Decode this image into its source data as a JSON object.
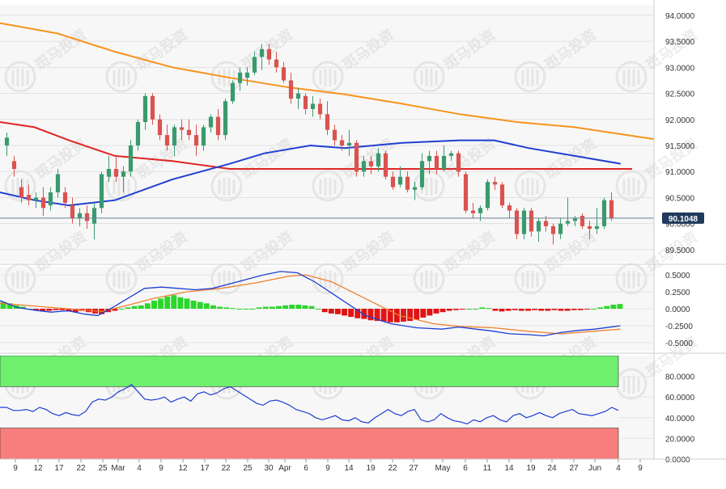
{
  "chart_data": [
    {
      "panel": "price",
      "type": "candlestick",
      "y_tick_labels": [
        "94.0000",
        "93.5000",
        "93.0000",
        "92.5000",
        "92.0000",
        "91.5000",
        "91.0000",
        "90.5000",
        "90.0000",
        "89.5000"
      ],
      "ylim": [
        89.25,
        94.2
      ],
      "current_price_label": "90.1048",
      "current_price": 90.1048,
      "colors": {
        "up": "#3a9a6e",
        "down": "#d9534f",
        "ma_orange": "#f7931e",
        "ma_blue": "#1f3fd1",
        "ma_red": "#e02424",
        "price_line": "#6b7f96"
      },
      "candles": [
        {
          "o": 91.5,
          "h": 91.75,
          "l": 91.3,
          "c": 91.65
        },
        {
          "o": 91.2,
          "h": 91.3,
          "l": 90.9,
          "c": 91.05
        },
        {
          "o": 90.7,
          "h": 90.85,
          "l": 90.4,
          "c": 90.5
        },
        {
          "o": 90.55,
          "h": 90.75,
          "l": 90.35,
          "c": 90.45
        },
        {
          "o": 90.45,
          "h": 90.6,
          "l": 90.3,
          "c": 90.5
        },
        {
          "o": 90.5,
          "h": 90.7,
          "l": 90.15,
          "c": 90.3
        },
        {
          "o": 90.35,
          "h": 90.7,
          "l": 90.25,
          "c": 90.6
        },
        {
          "o": 90.6,
          "h": 91.05,
          "l": 90.5,
          "c": 90.95
        },
        {
          "o": 90.6,
          "h": 90.7,
          "l": 90.3,
          "c": 90.4
        },
        {
          "o": 90.35,
          "h": 90.5,
          "l": 90.0,
          "c": 90.1
        },
        {
          "o": 90.1,
          "h": 90.3,
          "l": 89.95,
          "c": 90.2
        },
        {
          "o": 90.2,
          "h": 90.35,
          "l": 89.9,
          "c": 90.05
        },
        {
          "o": 90.0,
          "h": 90.4,
          "l": 89.7,
          "c": 90.3
        },
        {
          "o": 90.3,
          "h": 91.0,
          "l": 90.2,
          "c": 90.95
        },
        {
          "o": 90.9,
          "h": 91.3,
          "l": 90.8,
          "c": 91.05
        },
        {
          "o": 91.05,
          "h": 91.3,
          "l": 90.8,
          "c": 90.9
        },
        {
          "o": 90.9,
          "h": 91.1,
          "l": 90.6,
          "c": 91.0
        },
        {
          "o": 91.0,
          "h": 91.6,
          "l": 90.9,
          "c": 91.5
        },
        {
          "o": 91.5,
          "h": 92.0,
          "l": 91.4,
          "c": 91.95
        },
        {
          "o": 91.95,
          "h": 92.5,
          "l": 91.8,
          "c": 92.45
        },
        {
          "o": 92.45,
          "h": 92.5,
          "l": 91.9,
          "c": 92.0
        },
        {
          "o": 92.0,
          "h": 92.1,
          "l": 91.6,
          "c": 91.7
        },
        {
          "o": 91.7,
          "h": 91.9,
          "l": 91.4,
          "c": 91.5
        },
        {
          "o": 91.5,
          "h": 91.9,
          "l": 91.3,
          "c": 91.85
        },
        {
          "o": 91.85,
          "h": 92.0,
          "l": 91.6,
          "c": 91.8
        },
        {
          "o": 91.8,
          "h": 92.0,
          "l": 91.6,
          "c": 91.7
        },
        {
          "o": 91.7,
          "h": 91.9,
          "l": 91.3,
          "c": 91.5
        },
        {
          "o": 91.5,
          "h": 91.9,
          "l": 91.4,
          "c": 91.85
        },
        {
          "o": 91.85,
          "h": 92.1,
          "l": 91.75,
          "c": 92.05
        },
        {
          "o": 92.05,
          "h": 92.2,
          "l": 91.6,
          "c": 91.7
        },
        {
          "o": 91.7,
          "h": 92.4,
          "l": 91.6,
          "c": 92.35
        },
        {
          "o": 92.35,
          "h": 92.75,
          "l": 92.3,
          "c": 92.7
        },
        {
          "o": 92.7,
          "h": 93.0,
          "l": 92.55,
          "c": 92.9
        },
        {
          "o": 92.8,
          "h": 93.0,
          "l": 92.65,
          "c": 92.9
        },
        {
          "o": 92.9,
          "h": 93.3,
          "l": 92.85,
          "c": 93.2
        },
        {
          "o": 93.2,
          "h": 93.45,
          "l": 92.95,
          "c": 93.35
        },
        {
          "o": 93.35,
          "h": 93.45,
          "l": 93.05,
          "c": 93.15
        },
        {
          "o": 93.15,
          "h": 93.3,
          "l": 92.9,
          "c": 93.0
        },
        {
          "o": 93.0,
          "h": 93.1,
          "l": 92.7,
          "c": 92.75
        },
        {
          "o": 92.75,
          "h": 92.9,
          "l": 92.3,
          "c": 92.4
        },
        {
          "o": 92.4,
          "h": 92.6,
          "l": 92.2,
          "c": 92.5
        },
        {
          "o": 92.45,
          "h": 92.5,
          "l": 92.1,
          "c": 92.2
        },
        {
          "o": 92.2,
          "h": 92.45,
          "l": 92.05,
          "c": 92.3
        },
        {
          "o": 92.3,
          "h": 92.4,
          "l": 92.0,
          "c": 92.1
        },
        {
          "o": 92.1,
          "h": 92.35,
          "l": 91.7,
          "c": 91.8
        },
        {
          "o": 91.8,
          "h": 91.9,
          "l": 91.5,
          "c": 91.6
        },
        {
          "o": 91.6,
          "h": 91.7,
          "l": 91.4,
          "c": 91.5
        },
        {
          "o": 91.5,
          "h": 91.8,
          "l": 91.3,
          "c": 91.55
        },
        {
          "o": 91.55,
          "h": 91.6,
          "l": 90.9,
          "c": 91.0
        },
        {
          "o": 91.0,
          "h": 91.3,
          "l": 90.9,
          "c": 91.2
        },
        {
          "o": 91.2,
          "h": 91.3,
          "l": 90.95,
          "c": 91.1
        },
        {
          "o": 91.1,
          "h": 91.45,
          "l": 91.0,
          "c": 91.35
        },
        {
          "o": 91.35,
          "h": 91.4,
          "l": 90.85,
          "c": 90.9
        },
        {
          "o": 90.9,
          "h": 91.0,
          "l": 90.65,
          "c": 90.7
        },
        {
          "o": 90.75,
          "h": 91.1,
          "l": 90.7,
          "c": 90.9
        },
        {
          "o": 90.9,
          "h": 91.0,
          "l": 90.6,
          "c": 90.65
        },
        {
          "o": 90.65,
          "h": 90.8,
          "l": 90.45,
          "c": 90.7
        },
        {
          "o": 90.7,
          "h": 91.35,
          "l": 90.65,
          "c": 91.2
        },
        {
          "o": 91.2,
          "h": 91.4,
          "l": 90.95,
          "c": 91.3
        },
        {
          "o": 91.3,
          "h": 91.4,
          "l": 90.95,
          "c": 91.05
        },
        {
          "o": 91.05,
          "h": 91.5,
          "l": 91.0,
          "c": 91.3
        },
        {
          "o": 91.3,
          "h": 91.4,
          "l": 91.2,
          "c": 91.35
        },
        {
          "o": 91.35,
          "h": 91.4,
          "l": 90.9,
          "c": 91.0
        },
        {
          "o": 90.95,
          "h": 91.0,
          "l": 90.2,
          "c": 90.25
        },
        {
          "o": 90.25,
          "h": 90.4,
          "l": 90.1,
          "c": 90.2
        },
        {
          "o": 90.2,
          "h": 90.35,
          "l": 90.05,
          "c": 90.3
        },
        {
          "o": 90.3,
          "h": 90.85,
          "l": 90.25,
          "c": 90.8
        },
        {
          "o": 90.8,
          "h": 90.9,
          "l": 90.65,
          "c": 90.75
        },
        {
          "o": 90.75,
          "h": 90.8,
          "l": 90.3,
          "c": 90.35
        },
        {
          "o": 90.35,
          "h": 90.4,
          "l": 90.1,
          "c": 90.25
        },
        {
          "o": 90.25,
          "h": 90.3,
          "l": 89.7,
          "c": 89.8
        },
        {
          "o": 89.8,
          "h": 90.3,
          "l": 89.7,
          "c": 90.25
        },
        {
          "o": 90.25,
          "h": 90.3,
          "l": 89.75,
          "c": 89.85
        },
        {
          "o": 89.85,
          "h": 90.1,
          "l": 89.65,
          "c": 90.05
        },
        {
          "o": 90.05,
          "h": 90.15,
          "l": 89.85,
          "c": 89.95
        },
        {
          "o": 89.95,
          "h": 90.0,
          "l": 89.6,
          "c": 89.8
        },
        {
          "o": 89.8,
          "h": 90.1,
          "l": 89.7,
          "c": 90.0
        },
        {
          "o": 90.0,
          "h": 90.5,
          "l": 89.95,
          "c": 90.05
        },
        {
          "o": 90.05,
          "h": 90.15,
          "l": 89.95,
          "c": 90.1
        },
        {
          "o": 90.15,
          "h": 90.2,
          "l": 89.9,
          "c": 89.95
        },
        {
          "o": 89.95,
          "h": 90.05,
          "l": 89.7,
          "c": 89.9
        },
        {
          "o": 89.9,
          "h": 90.3,
          "l": 89.8,
          "c": 89.95
        },
        {
          "o": 89.95,
          "h": 90.5,
          "l": 89.9,
          "c": 90.45
        },
        {
          "o": 90.45,
          "h": 90.6,
          "l": 90.05,
          "c": 90.1
        }
      ],
      "ma_orange": [
        [
          0,
          93.85
        ],
        [
          10,
          93.65
        ],
        [
          20,
          93.3
        ],
        [
          30,
          93.0
        ],
        [
          40,
          92.8
        ],
        [
          50,
          92.62
        ],
        [
          60,
          92.48
        ],
        [
          70,
          92.3
        ],
        [
          80,
          92.1
        ],
        [
          90,
          91.95
        ],
        [
          100,
          91.85
        ],
        [
          114,
          91.62
        ]
      ],
      "ma_blue": [
        [
          0,
          90.6
        ],
        [
          6,
          90.45
        ],
        [
          12,
          90.35
        ],
        [
          20,
          90.45
        ],
        [
          30,
          90.85
        ],
        [
          40,
          91.15
        ],
        [
          46,
          91.35
        ],
        [
          54,
          91.5
        ],
        [
          60,
          91.45
        ],
        [
          70,
          91.55
        ],
        [
          80,
          91.6
        ],
        [
          86,
          91.6
        ],
        [
          92,
          91.45
        ],
        [
          100,
          91.3
        ],
        [
          108,
          91.15
        ]
      ],
      "ma_red": [
        [
          0,
          91.95
        ],
        [
          6,
          91.85
        ],
        [
          12,
          91.6
        ],
        [
          20,
          91.3
        ],
        [
          30,
          91.2
        ],
        [
          40,
          91.05
        ],
        [
          54,
          91.05
        ],
        [
          70,
          91.05
        ],
        [
          90,
          91.05
        ],
        [
          110,
          91.05
        ]
      ]
    },
    {
      "panel": "macd",
      "type": "line+bar",
      "y_tick_labels": [
        "0.5000",
        "0.2500",
        "0.0000",
        "-0.2500",
        "-0.5000"
      ],
      "ylim": [
        -0.62,
        0.62
      ],
      "colors": {
        "hist_up": "#2cd62c",
        "hist_down": "#e01414",
        "macd": "#1f3fd1",
        "signal": "#f08030"
      },
      "histogram": [
        0.1,
        0.08,
        0.05,
        0.03,
        0.0,
        -0.02,
        -0.03,
        -0.03,
        -0.02,
        -0.02,
        -0.04,
        -0.05,
        -0.03,
        -0.05,
        -0.07,
        -0.08,
        -0.05,
        -0.03,
        0.0,
        0.02,
        0.04,
        0.05,
        0.08,
        0.12,
        0.15,
        0.18,
        0.2,
        0.17,
        0.15,
        0.12,
        0.1,
        0.08,
        0.05,
        0.03,
        0.02,
        0.01,
        0.0,
        0.0,
        0.0,
        0.02,
        0.03,
        0.03,
        0.04,
        0.05,
        0.06,
        0.06,
        0.05,
        0.04,
        0.0,
        -0.05,
        -0.07,
        -0.08,
        -0.1,
        -0.12,
        -0.14,
        -0.15,
        -0.17,
        -0.18,
        -0.19,
        -0.2,
        -0.2,
        -0.19,
        -0.18,
        -0.16,
        -0.13,
        -0.1,
        -0.07,
        -0.05,
        -0.03,
        -0.02,
        -0.01,
        0.0,
        0.0,
        0.02,
        0.01,
        -0.03,
        -0.04,
        -0.03,
        -0.02,
        -0.03,
        -0.03,
        -0.02,
        -0.03,
        -0.03,
        -0.02,
        -0.03,
        -0.03,
        -0.02,
        -0.02,
        -0.01,
        0.0,
        0.02,
        0.04,
        0.06,
        0.07
      ],
      "macd": [
        [
          0,
          0.12
        ],
        [
          4,
          0.02
        ],
        [
          8,
          -0.02
        ],
        [
          12,
          -0.05
        ],
        [
          16,
          -0.03
        ],
        [
          20,
          -0.08
        ],
        [
          23,
          -0.1
        ],
        [
          26,
          0.0
        ],
        [
          30,
          0.15
        ],
        [
          34,
          0.3
        ],
        [
          38,
          0.32
        ],
        [
          42,
          0.3
        ],
        [
          46,
          0.28
        ],
        [
          50,
          0.3
        ],
        [
          56,
          0.4
        ],
        [
          62,
          0.5
        ],
        [
          66,
          0.55
        ],
        [
          70,
          0.53
        ],
        [
          74,
          0.4
        ],
        [
          80,
          0.15
        ],
        [
          86,
          -0.1
        ],
        [
          92,
          -0.22
        ],
        [
          98,
          -0.28
        ],
        [
          104,
          -0.3
        ],
        [
          108,
          -0.27
        ],
        [
          112,
          -0.3
        ],
        [
          116,
          -0.33
        ],
        [
          120,
          -0.37
        ],
        [
          124,
          -0.38
        ],
        [
          128,
          -0.4
        ],
        [
          132,
          -0.35
        ],
        [
          136,
          -0.32
        ],
        [
          140,
          -0.3
        ],
        [
          146,
          -0.25
        ]
      ],
      "signal": [
        [
          0,
          0.08
        ],
        [
          8,
          0.04
        ],
        [
          16,
          0.0
        ],
        [
          24,
          -0.04
        ],
        [
          30,
          0.05
        ],
        [
          36,
          0.15
        ],
        [
          44,
          0.25
        ],
        [
          52,
          0.3
        ],
        [
          60,
          0.38
        ],
        [
          68,
          0.48
        ],
        [
          72,
          0.5
        ],
        [
          78,
          0.4
        ],
        [
          86,
          0.15
        ],
        [
          94,
          -0.1
        ],
        [
          102,
          -0.22
        ],
        [
          108,
          -0.26
        ],
        [
          116,
          -0.28
        ],
        [
          124,
          -0.33
        ],
        [
          132,
          -0.37
        ],
        [
          140,
          -0.33
        ],
        [
          146,
          -0.3
        ]
      ]
    },
    {
      "panel": "rsi",
      "type": "line",
      "y_tick_labels": [
        "80.0000",
        "60.0000",
        "40.0000",
        "20.0000",
        "0.0000"
      ],
      "ylim": [
        0,
        100
      ],
      "overbought_band": [
        70,
        100
      ],
      "oversold_band": [
        0,
        30
      ],
      "colors": {
        "line": "#1f3fd1",
        "overbought": "#6ef06e",
        "oversold": "#f97d7d"
      },
      "values": [
        50,
        50,
        47,
        47,
        48,
        46,
        50,
        48,
        44,
        42,
        45,
        43,
        42,
        46,
        55,
        58,
        57,
        60,
        65,
        68,
        72,
        65,
        58,
        57,
        58,
        60,
        55,
        58,
        60,
        56,
        63,
        65,
        62,
        64,
        68,
        70,
        66,
        62,
        58,
        54,
        52,
        56,
        57,
        55,
        52,
        48,
        46,
        44,
        40,
        38,
        40,
        42,
        38,
        37,
        40,
        36,
        35,
        40,
        44,
        48,
        44,
        42,
        46,
        48,
        38,
        36,
        38,
        44,
        40,
        37,
        36,
        34,
        38,
        36,
        40,
        42,
        38,
        36,
        42,
        44,
        40,
        42,
        45,
        42,
        40,
        44,
        46,
        48,
        44,
        43,
        42,
        44,
        46,
        50,
        47
      ]
    },
    {
      "panel": "x-axis",
      "tick_labels": [
        "9",
        "12",
        "17",
        "22",
        "25",
        "Mar",
        "4",
        "9",
        "12",
        "17",
        "22",
        "25",
        "30",
        "Apr",
        "6",
        "9",
        "14",
        "19",
        "22",
        "27",
        "May",
        "6",
        "11",
        "14",
        "19",
        "24",
        "27",
        "Jun",
        "4",
        "9"
      ]
    }
  ],
  "watermark": {
    "text": "斑马投资"
  }
}
